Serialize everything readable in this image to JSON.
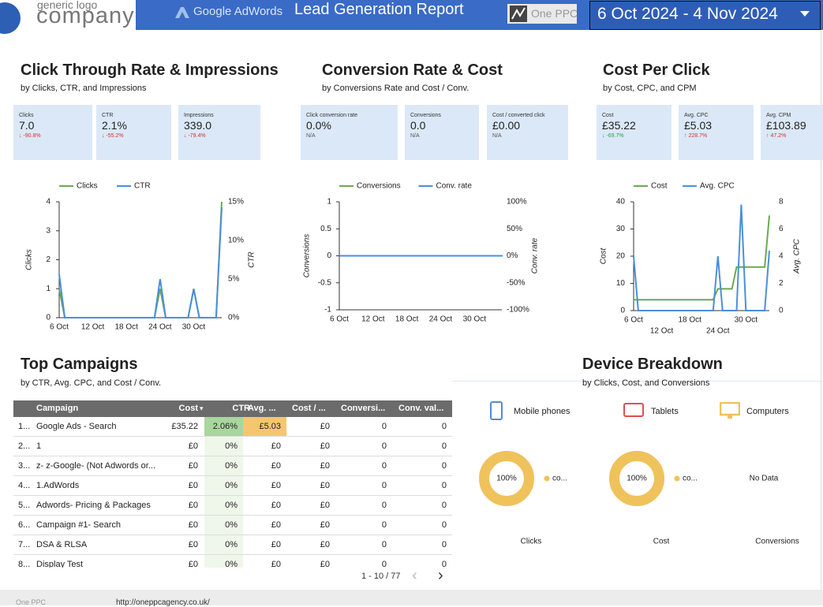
{
  "header": {
    "logo_top": "generic logo",
    "logo_bottom": "company",
    "adwords": "Google AdWords",
    "title": "Lead Generation Report",
    "one_ppc": "One PPC",
    "date_range": "6 Oct 2024 - 4 Nov 2024"
  },
  "sections": [
    {
      "title": "Click Through Rate & Impressions",
      "subtitle": "by Clicks, CTR, and Impressions",
      "kpis": [
        {
          "label": "Clicks",
          "value": "7.0",
          "change": "↓ -90.8%",
          "change_color": "#d93025"
        },
        {
          "label": "CTR",
          "value": "2.1%",
          "change": "↓ -55.2%",
          "change_color": "#d93025"
        },
        {
          "label": "Impressions",
          "value": "339.0",
          "change": "↓ -79.4%",
          "change_color": "#d93025"
        }
      ],
      "chart": {
        "type": "line",
        "categories": [
          "6 Oct",
          "7 Oct",
          "8 Oct",
          "9 Oct",
          "10 Oct",
          "11 Oct",
          "12 Oct",
          "13 Oct",
          "14 Oct",
          "15 Oct",
          "16 Oct",
          "17 Oct",
          "18 Oct",
          "19 Oct",
          "20 Oct",
          "21 Oct",
          "22 Oct",
          "23 Oct",
          "24 Oct",
          "25 Oct",
          "26 Oct",
          "27 Oct",
          "28 Oct",
          "29 Oct",
          "30 Oct",
          "31 Oct",
          "1 Nov",
          "2 Nov",
          "3 Nov",
          "4 Nov"
        ],
        "xticks": [
          "6 Oct",
          "12 Oct",
          "18 Oct",
          "24 Oct",
          "30 Oct"
        ],
        "ylabel": "Clicks",
        "y2label": "CTR",
        "ylim": [
          0,
          4
        ],
        "yticks": [
          0,
          1,
          2,
          3,
          4
        ],
        "y2lim": [
          0,
          15
        ],
        "y2ticks": [
          {
            "value": 0,
            "label": "0%"
          },
          {
            "value": 5,
            "label": "5%"
          },
          {
            "value": 10,
            "label": "10%"
          },
          {
            "value": 15,
            "label": "15%"
          }
        ],
        "series": [
          {
            "name": "Clicks",
            "color": "#6aaa4f",
            "values": [
              1,
              0,
              0,
              0,
              0,
              0,
              0,
              0,
              0,
              0,
              0,
              0,
              0,
              0,
              0,
              0,
              0,
              0,
              1,
              0,
              0,
              0,
              0,
              0,
              1,
              0,
              0,
              0,
              0,
              4
            ]
          },
          {
            "name": "CTR",
            "color": "#4a8fdb",
            "axis": "y2",
            "values": [
              5.6,
              0,
              0,
              0,
              0,
              0,
              0,
              0,
              0,
              0,
              0,
              0,
              0,
              0,
              0,
              0,
              0,
              0,
              5,
              0,
              0,
              0,
              0,
              0,
              3.7,
              0,
              0,
              0,
              0,
              14.3
            ]
          }
        ]
      }
    },
    {
      "title": "Conversion Rate & Cost",
      "subtitle": "by Conversions Rate and Cost / Conv.",
      "kpis": [
        {
          "label": "Click conversion rate",
          "value": "0.0%",
          "change": "N/A",
          "change_color": "#555555"
        },
        {
          "label": "Conversions",
          "value": "0.0",
          "change": "N/A",
          "change_color": "#555555"
        },
        {
          "label": "Cost / converted click",
          "value": "£0.00",
          "change": "N/A",
          "change_color": "#555555"
        }
      ],
      "chart": {
        "type": "line",
        "categories": [
          "6 Oct",
          "7 Oct",
          "8 Oct",
          "9 Oct",
          "10 Oct",
          "11 Oct",
          "12 Oct",
          "13 Oct",
          "14 Oct",
          "15 Oct",
          "16 Oct",
          "17 Oct",
          "18 Oct",
          "19 Oct",
          "20 Oct",
          "21 Oct",
          "22 Oct",
          "23 Oct",
          "24 Oct",
          "25 Oct",
          "26 Oct",
          "27 Oct",
          "28 Oct",
          "29 Oct",
          "30 Oct",
          "31 Oct",
          "1 Nov",
          "2 Nov",
          "3 Nov",
          "4 Nov"
        ],
        "xticks": [
          "6 Oct",
          "12 Oct",
          "18 Oct",
          "24 Oct",
          "30 Oct"
        ],
        "ylabel": "Conversions",
        "y2label": "Conv. rate",
        "ylim": [
          -1,
          1
        ],
        "yticks": [
          -1,
          -0.5,
          0,
          0.5,
          1
        ],
        "y2lim": [
          -100,
          100
        ],
        "y2ticks": [
          {
            "value": -100,
            "label": "-100%"
          },
          {
            "value": -50,
            "label": "-50%"
          },
          {
            "value": 0,
            "label": "0%"
          },
          {
            "value": 50,
            "label": "50%"
          },
          {
            "value": 100,
            "label": "100%"
          }
        ],
        "series": [
          {
            "name": "Conversions",
            "color": "#6aaa4f",
            "values": [
              0,
              0,
              0,
              0,
              0,
              0,
              0,
              0,
              0,
              0,
              0,
              0,
              0,
              0,
              0,
              0,
              0,
              0,
              0,
              0,
              0,
              0,
              0,
              0,
              0,
              0,
              0,
              0,
              0,
              0
            ]
          },
          {
            "name": "Conv. rate",
            "color": "#4a8fdb",
            "axis": "y2",
            "values": [
              0,
              0,
              0,
              0,
              0,
              0,
              0,
              0,
              0,
              0,
              0,
              0,
              0,
              0,
              0,
              0,
              0,
              0,
              0,
              0,
              0,
              0,
              0,
              0,
              0,
              0,
              0,
              0,
              0,
              0
            ]
          }
        ]
      }
    },
    {
      "title": "Cost Per Click",
      "subtitle": "by Cost, CPC, and CPM",
      "kpis": [
        {
          "label": "Cost",
          "value": "£35.22",
          "change": "↓ -69.7%",
          "change_color": "#2e9e4f"
        },
        {
          "label": "Avg. CPC",
          "value": "£5.03",
          "change": "↑ 228.7%",
          "change_color": "#d93025"
        },
        {
          "label": "Avg. CPM",
          "value": "£103.89",
          "change": "↑ 47.2%",
          "change_color": "#d93025"
        }
      ],
      "chart": {
        "type": "line",
        "categories": [
          "6 Oct",
          "7 Oct",
          "8 Oct",
          "9 Oct",
          "10 Oct",
          "11 Oct",
          "12 Oct",
          "13 Oct",
          "14 Oct",
          "15 Oct",
          "16 Oct",
          "17 Oct",
          "18 Oct",
          "19 Oct",
          "20 Oct",
          "21 Oct",
          "22 Oct",
          "23 Oct",
          "24 Oct",
          "25 Oct",
          "26 Oct",
          "27 Oct",
          "28 Oct",
          "29 Oct",
          "30 Oct",
          "31 Oct",
          "1 Nov",
          "2 Nov",
          "3 Nov",
          "4 Nov"
        ],
        "xticks": [
          "6 Oct",
          "12 Oct",
          "18 Oct",
          "24 Oct",
          "30 Oct"
        ],
        "stagger_xticks": true,
        "ylabel": "Cost",
        "y2label": "Avg. CPC",
        "ylim": [
          0,
          40
        ],
        "yticks": [
          0,
          10,
          20,
          30,
          40
        ],
        "y2lim": [
          0,
          8
        ],
        "y2ticks": [
          0,
          2,
          4,
          6,
          8
        ],
        "series": [
          {
            "name": "Cost",
            "color": "#6aaa4f",
            "values": [
              4,
              4,
              4,
              4,
              4,
              4,
              4,
              4,
              4,
              4,
              4,
              4,
              4,
              4,
              4,
              4,
              4,
              4,
              8,
              8,
              8,
              8,
              16,
              16,
              16,
              16,
              16,
              16,
              16,
              35
            ]
          },
          {
            "name": "Avg. CPC",
            "color": "#4a8fdb",
            "axis": "y2",
            "values": [
              4,
              0,
              0,
              0,
              0,
              0,
              0,
              0,
              0,
              0,
              0,
              0,
              0,
              0,
              0,
              0,
              0,
              0,
              4,
              0,
              0,
              0,
              0,
              7.8,
              0,
              0,
              0,
              0,
              0,
              4.4
            ]
          }
        ]
      }
    }
  ],
  "campaigns": {
    "title": "Top Campaigns",
    "subtitle": "by CTR, Avg. CPC, and Cost / Conv.",
    "columns": [
      "Campaign",
      "Cost",
      "CTR",
      "Avg. ...",
      "Cost / ...",
      "Conversi...",
      "Conv. val..."
    ],
    "rows": [
      [
        "1...",
        "Google Ads - Search",
        "£35.22",
        "2.06%",
        "£5.03",
        "£0",
        "0",
        "0"
      ],
      [
        "2...",
        "1",
        "£0",
        "0%",
        "£0",
        "£0",
        "0",
        "0"
      ],
      [
        "3...",
        "z- z-Google- (Not Adwords or...",
        "£0",
        "0%",
        "£0",
        "£0",
        "0",
        "0"
      ],
      [
        "4...",
        "1.AdWords",
        "£0",
        "0%",
        "£0",
        "£0",
        "0",
        "0"
      ],
      [
        "5...",
        "Adwords- Pricing & Packages",
        "£0",
        "0%",
        "£0",
        "£0",
        "0",
        "0"
      ],
      [
        "6...",
        "Campaign #1- Search",
        "£0",
        "0%",
        "£0",
        "£0",
        "0",
        "0"
      ],
      [
        "7...",
        "DSA & RLSA",
        "£0",
        "0%",
        "£0",
        "£0",
        "0",
        "0"
      ],
      [
        "8...",
        "Display Test",
        "£0",
        "0%",
        "£0",
        "£0",
        "0",
        "0"
      ]
    ],
    "pagination": "1 - 10 / 77"
  },
  "devices": {
    "title": "Device Breakdown",
    "subtitle": "by Clicks, Cost, and Conversions",
    "legend": [
      "Mobile phones",
      "Tablets",
      "Computers"
    ],
    "charts": [
      {
        "type": "pie",
        "caption": "Clicks",
        "categories": [
          "co..."
        ],
        "values": [
          100
        ],
        "value_labels": [
          "100%"
        ],
        "color": "#efc25c"
      },
      {
        "type": "pie",
        "caption": "Cost",
        "categories": [
          "co..."
        ],
        "values": [
          100
        ],
        "value_labels": [
          "100%"
        ],
        "color": "#efc25c"
      },
      {
        "type": "pie",
        "caption": "Conversions",
        "empty_text": "No Data"
      }
    ]
  },
  "footer": {
    "brand": "One PPC",
    "url": "http://oneppcagency.co.uk/"
  }
}
